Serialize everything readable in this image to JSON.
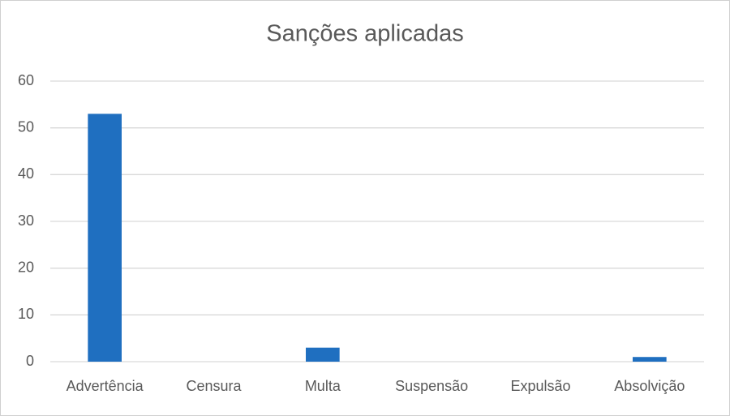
{
  "chart_data": {
    "type": "bar",
    "title": "Sanções aplicadas",
    "categories": [
      "Advertência",
      "Censura",
      "Multa",
      "Suspensão",
      "Expulsão",
      "Absolvição"
    ],
    "values": [
      53,
      0,
      3,
      0,
      0,
      1
    ],
    "color": "#1f6fc0",
    "ylim": [
      0,
      60
    ],
    "yticks": [
      0,
      10,
      20,
      30,
      40,
      50,
      60
    ],
    "grid": true
  }
}
